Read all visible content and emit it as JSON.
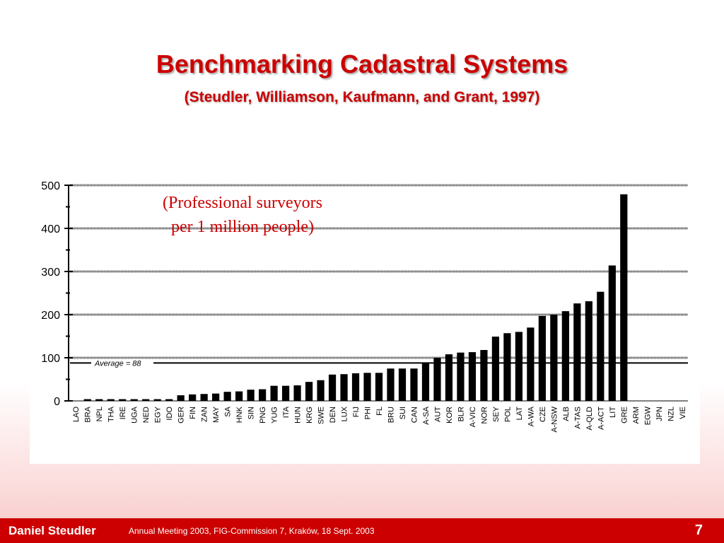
{
  "slide": {
    "title": "Benchmarking Cadastral Systems",
    "subtitle": "(Steudler, Williamson, Kaufmann, and Grant, 1997)"
  },
  "chart_data": {
    "type": "bar",
    "note_line1": "(Professional surveyors",
    "note_line2": "per 1 million people)",
    "categories": [
      "LAO",
      "BRA",
      "NPL",
      "THA",
      "IRE",
      "UGA",
      "NED",
      "EGY",
      "IDO",
      "GER",
      "FIN",
      "ZAN",
      "MAY",
      "SA",
      "HNK",
      "SIN",
      "PNG",
      "YUG",
      "ITA",
      "HUN",
      "KRG",
      "SWE",
      "DEN",
      "LUX",
      "FIJ",
      "PHI",
      "FL",
      "BRU",
      "SUI",
      "CAN",
      "A-SA",
      "AUT",
      "KOR",
      "BLR",
      "A-VIC",
      "NOR",
      "SEY",
      "POL",
      "LAT",
      "A-WA",
      "CZE",
      "A-NSW",
      "ALB",
      "A-TAS",
      "A-QLD",
      "A-ACT",
      "LIT",
      "GRE",
      "ARM",
      "EGW",
      "JPN",
      "NZL",
      "VIE"
    ],
    "values": [
      0,
      4,
      4,
      4,
      4,
      4,
      4,
      4,
      4,
      13,
      15,
      16,
      17,
      21,
      22,
      26,
      27,
      35,
      35,
      36,
      44,
      48,
      61,
      62,
      64,
      65,
      65,
      75,
      75,
      75,
      87,
      100,
      108,
      112,
      113,
      118,
      149,
      157,
      160,
      170,
      197,
      200,
      208,
      226,
      231,
      253,
      314,
      479,
      0,
      0,
      0,
      0,
      0
    ],
    "ylim": [
      0,
      500
    ],
    "yticks": [
      "0",
      "100",
      "200",
      "300",
      "400",
      "500"
    ],
    "average": {
      "value": 88,
      "label": "Average  =  88"
    },
    "bar_color": "#000000",
    "grid": true
  },
  "footer": {
    "author": "Daniel Steudler",
    "event": "Annual Meeting 2003, FIG-Commission 7, Kraków, 18 Sept. 2003",
    "page": "7"
  },
  "colors": {
    "accent": "#cc0000",
    "footer_bg": "#cc0000"
  }
}
